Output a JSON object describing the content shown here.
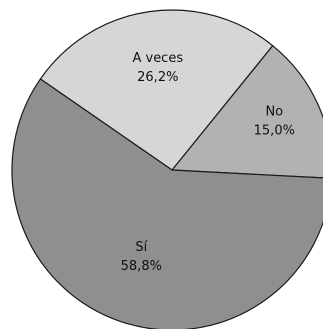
{
  "chart_data": {
    "type": "pie",
    "title": "",
    "legend": "none",
    "start_angle_deg": -3,
    "direction": "counterclockwise",
    "slices": [
      {
        "label": "No",
        "value_label": "15,0%",
        "value": 15.0,
        "color": "#b2b2b2"
      },
      {
        "label": "A veces",
        "value_label": "26,2%",
        "value": 26.2,
        "color": "#d6d6d6"
      },
      {
        "label": "Sí",
        "value_label": "58,8%",
        "value": 58.8,
        "color": "#8f8f8f"
      }
    ],
    "stroke_color": "#1a1a1a"
  }
}
